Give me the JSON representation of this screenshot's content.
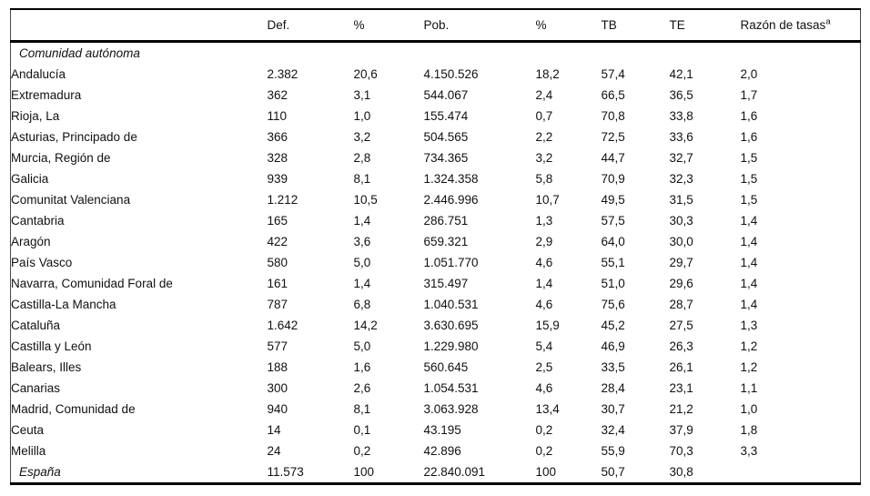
{
  "chart_data": {
    "type": "table",
    "header": {
      "name": "",
      "def": "Def.",
      "pct_def": "%",
      "pob": "Pob.",
      "pct_pob": "%",
      "tb": "TB",
      "te": "TE",
      "razon": "Razón de tasas",
      "razon_sup": "a"
    },
    "section_label": "Comunidad autónoma",
    "rows": [
      {
        "name": "Andalucía",
        "def": "2.382",
        "pct_def": "20,6",
        "pob": "4.150.526",
        "pct_pob": "18,2",
        "tb": "57,4",
        "te": "42,1",
        "razon": "2,0"
      },
      {
        "name": "Extremadura",
        "def": "362",
        "pct_def": "3,1",
        "pob": "544.067",
        "pct_pob": "2,4",
        "tb": "66,5",
        "te": "36,5",
        "razon": "1,7"
      },
      {
        "name": "Rioja, La",
        "def": "110",
        "pct_def": "1,0",
        "pob": "155.474",
        "pct_pob": "0,7",
        "tb": "70,8",
        "te": "33,8",
        "razon": "1,6"
      },
      {
        "name": "Asturias, Principado de",
        "def": "366",
        "pct_def": "3,2",
        "pob": "504.565",
        "pct_pob": "2,2",
        "tb": "72,5",
        "te": "33,6",
        "razon": "1,6"
      },
      {
        "name": "Murcia, Región de",
        "def": "328",
        "pct_def": "2,8",
        "pob": "734.365",
        "pct_pob": "3,2",
        "tb": "44,7",
        "te": "32,7",
        "razon": "1,5"
      },
      {
        "name": "Galicia",
        "def": "939",
        "pct_def": "8,1",
        "pob": "1.324.358",
        "pct_pob": "5,8",
        "tb": "70,9",
        "te": "32,3",
        "razon": "1,5"
      },
      {
        "name": "Comunitat Valenciana",
        "def": "1.212",
        "pct_def": "10,5",
        "pob": "2.446.996",
        "pct_pob": "10,7",
        "tb": "49,5",
        "te": "31,5",
        "razon": "1,5"
      },
      {
        "name": "Cantabria",
        "def": "165",
        "pct_def": "1,4",
        "pob": "286.751",
        "pct_pob": "1,3",
        "tb": "57,5",
        "te": "30,3",
        "razon": "1,4"
      },
      {
        "name": "Aragón",
        "def": "422",
        "pct_def": "3,6",
        "pob": "659.321",
        "pct_pob": "2,9",
        "tb": "64,0",
        "te": "30,0",
        "razon": "1,4"
      },
      {
        "name": "País Vasco",
        "def": "580",
        "pct_def": "5,0",
        "pob": "1.051.770",
        "pct_pob": "4,6",
        "tb": "55,1",
        "te": "29,7",
        "razon": "1,4"
      },
      {
        "name": "Navarra, Comunidad Foral de",
        "def": "161",
        "pct_def": "1,4",
        "pob": "315.497",
        "pct_pob": "1,4",
        "tb": "51,0",
        "te": "29,6",
        "razon": "1,4"
      },
      {
        "name": "Castilla-La Mancha",
        "def": "787",
        "pct_def": "6,8",
        "pob": "1.040.531",
        "pct_pob": "4,6",
        "tb": "75,6",
        "te": "28,7",
        "razon": "1,4"
      },
      {
        "name": "Cataluña",
        "def": "1.642",
        "pct_def": "14,2",
        "pob": "3.630.695",
        "pct_pob": "15,9",
        "tb": "45,2",
        "te": "27,5",
        "razon": "1,3"
      },
      {
        "name": "Castilla y León",
        "def": "577",
        "pct_def": "5,0",
        "pob": "1.229.980",
        "pct_pob": "5,4",
        "tb": "46,9",
        "te": "26,3",
        "razon": "1,2"
      },
      {
        "name": "Balears, Illes",
        "def": "188",
        "pct_def": "1,6",
        "pob": "560.645",
        "pct_pob": "2,5",
        "tb": "33,5",
        "te": "26,1",
        "razon": "1,2"
      },
      {
        "name": "Canarias",
        "def": "300",
        "pct_def": "2,6",
        "pob": "1.054.531",
        "pct_pob": "4,6",
        "tb": "28,4",
        "te": "23,1",
        "razon": "1,1"
      },
      {
        "name": "Madrid, Comunidad de",
        "def": "940",
        "pct_def": "8,1",
        "pob": "3.063.928",
        "pct_pob": "13,4",
        "tb": "30,7",
        "te": "21,2",
        "razon": "1,0"
      },
      {
        "name": "Ceuta",
        "def": "14",
        "pct_def": "0,1",
        "pob": "43.195",
        "pct_pob": "0,2",
        "tb": "32,4",
        "te": "37,9",
        "razon": "1,8"
      },
      {
        "name": "Melilla",
        "def": "24",
        "pct_def": "0,2",
        "pob": "42.896",
        "pct_pob": "0,2",
        "tb": "55,9",
        "te": "70,3",
        "razon": "3,3"
      }
    ],
    "total": {
      "name": "España",
      "def": "11.573",
      "pct_def": "100",
      "pob": "22.840.091",
      "pct_pob": "100",
      "tb": "50,7",
      "te": "30,8",
      "razon": ""
    }
  }
}
